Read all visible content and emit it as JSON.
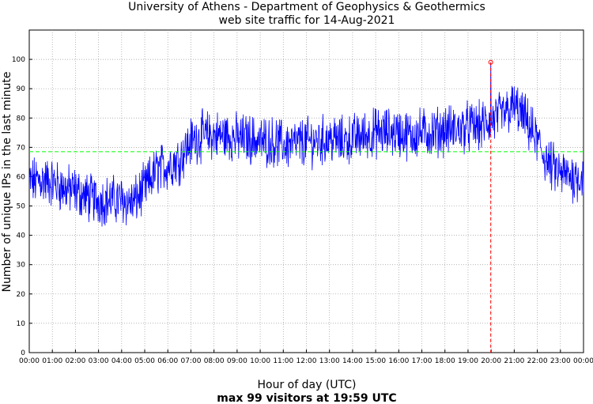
{
  "chart_data": {
    "type": "line",
    "title": "University of Athens - Department of Geophysics & Geothermics",
    "subtitle": "web site traffic for 14-Aug-2021",
    "xlabel": "Hour of day (UTC)",
    "ylabel": "Number of unique IPs in the last minute",
    "footer": "max 99 visitors at 19:59 UTC",
    "x_ticks": [
      "00:00",
      "01:00",
      "02:00",
      "03:00",
      "04:00",
      "05:00",
      "06:00",
      "07:00",
      "08:00",
      "09:00",
      "10:00",
      "11:00",
      "12:00",
      "13:00",
      "14:00",
      "15:00",
      "16:00",
      "17:00",
      "18:00",
      "19:00",
      "20:00",
      "21:00",
      "22:00",
      "23:00",
      "00:00"
    ],
    "y_ticks": [
      "0",
      "10",
      "20",
      "30",
      "40",
      "50",
      "60",
      "70",
      "80",
      "90",
      "100"
    ],
    "xlim": [
      0,
      24
    ],
    "ylim": [
      0,
      110
    ],
    "grid": true,
    "series": [
      {
        "hour": [
          0,
          0.5,
          1,
          1.5,
          2,
          2.5,
          3,
          3.5,
          4,
          4.5,
          5,
          5.5,
          6,
          6.5,
          7,
          7.5,
          8,
          8.5,
          9,
          9.5,
          10,
          10.5,
          11,
          11.5,
          12,
          12.5,
          13,
          13.5,
          14,
          14.5,
          15,
          15.5,
          16,
          16.5,
          17,
          17.5,
          18,
          18.5,
          19,
          19.5,
          20,
          20.5,
          21,
          21.5,
          22,
          22.5,
          23,
          23.5,
          24
        ],
        "avg_visitors": [
          58,
          59,
          58,
          56,
          55,
          53,
          52,
          52,
          52,
          51,
          56,
          62,
          64,
          66,
          72,
          74,
          74,
          74,
          73,
          73,
          72,
          72,
          71,
          71,
          72,
          72,
          73,
          72,
          73,
          74,
          75,
          75,
          75,
          74,
          75,
          75,
          76,
          76,
          77,
          77,
          79,
          81,
          84,
          79,
          72,
          64,
          61,
          60,
          60
        ],
        "color": "#0000ff"
      }
    ],
    "mean_line": {
      "value": 68.5,
      "color": "#00ff00"
    },
    "max_marker": {
      "time": "19:59",
      "hour": 19.983,
      "value": 99,
      "color": "#ff0000"
    }
  }
}
